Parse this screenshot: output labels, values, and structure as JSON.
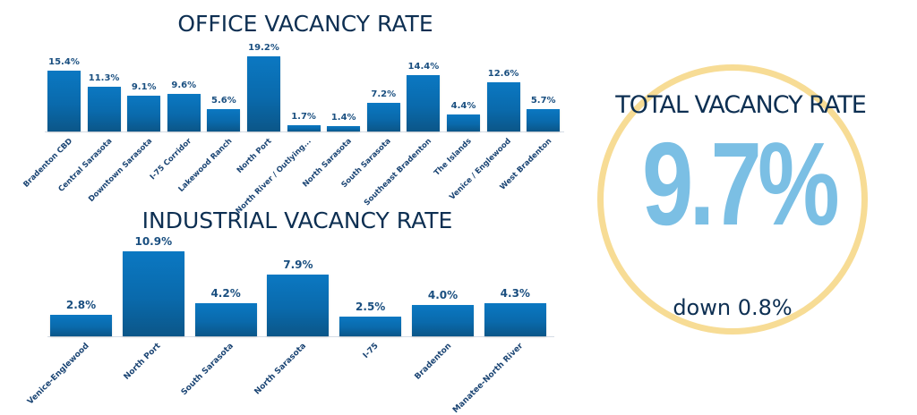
{
  "office": {
    "title": "OFFICE VACANCY RATE"
  },
  "industrial": {
    "title": "INDUSTRIAL VACANCY RATE"
  },
  "total": {
    "title": "TOTAL VACANCY RATE",
    "value": "9.7%",
    "change": "down 0.8%"
  },
  "colors": {
    "bar": "#0b6aab",
    "title": "#0d2f52",
    "big_number": "#7bbfe4",
    "circle": "#f7dc95"
  },
  "chart_data": [
    {
      "type": "bar",
      "title": "OFFICE VACANCY RATE",
      "xlabel": "",
      "ylabel": "",
      "grid": false,
      "categories": [
        "Bradenton CBD",
        "Central Sarasota",
        "Downtown Sarasota",
        "I-75 Corridor",
        "Lakewood Ranch",
        "North Port",
        "North River / Outlying...",
        "North Sarasota",
        "South Sarasota",
        "Southeast Bradenton",
        "The Islands",
        "Venice / Englewood",
        "West Bradenton"
      ],
      "values": [
        15.4,
        11.3,
        9.1,
        9.6,
        5.6,
        19.2,
        1.7,
        1.4,
        7.2,
        14.4,
        4.4,
        12.6,
        5.7
      ],
      "labels": [
        "15.4%",
        "11.3%",
        "9.1%",
        "9.6%",
        "5.6%",
        "19.2%",
        "1.7%",
        "1.4%",
        "7.2%",
        "14.4%",
        "4.4%",
        "12.6%",
        "5.7%"
      ],
      "ylim": [
        0,
        20
      ]
    },
    {
      "type": "bar",
      "title": "INDUSTRIAL VACANCY RATE",
      "xlabel": "",
      "ylabel": "",
      "grid": false,
      "categories": [
        "Venice-Englewood",
        "North Port",
        "South Sarasota",
        "North Sarasota",
        "I-75",
        "Bradenton",
        "Manatee-North River"
      ],
      "values": [
        2.8,
        10.9,
        4.2,
        7.9,
        2.5,
        4.0,
        4.3
      ],
      "labels": [
        "2.8%",
        "10.9%",
        "4.2%",
        "7.9%",
        "2.5%",
        "4.0%",
        "4.3%"
      ],
      "ylim": [
        0,
        11
      ]
    },
    {
      "type": "table",
      "title": "TOTAL VACANCY RATE",
      "values": [
        9.7
      ],
      "labels": [
        "9.7%"
      ],
      "annotation": "down 0.8%"
    }
  ]
}
